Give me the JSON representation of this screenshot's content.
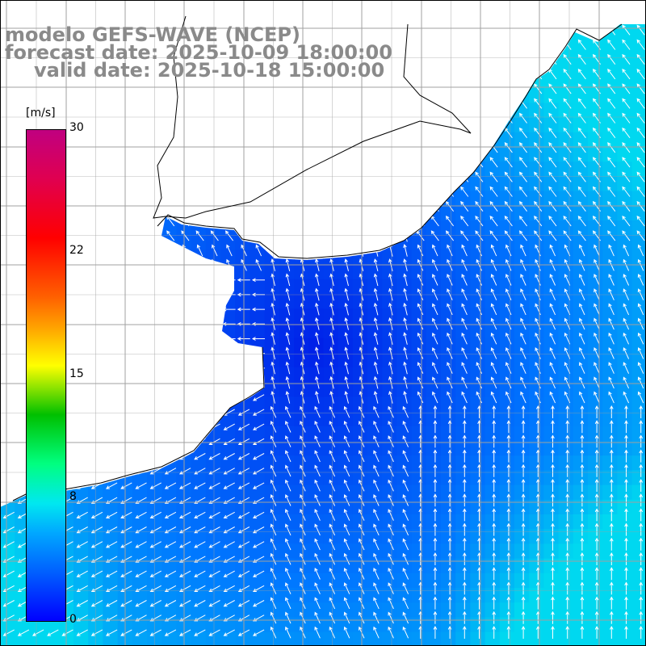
{
  "header": {
    "line1": "modelo GEFS-WAVE (NCEP)",
    "line2": "forecast date: 2025-10-09 18:00:00",
    "line3": "valid date: 2025-10-18 15:00:00"
  },
  "colorbar": {
    "unit": "[m/s]",
    "ticks": [
      "30",
      "22",
      "15",
      "8",
      "0"
    ],
    "tick_values": [
      30,
      22,
      15,
      8,
      0
    ],
    "min": 0,
    "max": 30
  },
  "colors": {
    "land": "#ffffff",
    "ocean_low": "#0020e8",
    "ocean_mid": "#0078ff",
    "ocean_high": "#00d8f0",
    "grid": "#a0a0a0",
    "coast": "#000000",
    "arrow": "#ffffff",
    "header_text": "#8a8a8a"
  }
}
